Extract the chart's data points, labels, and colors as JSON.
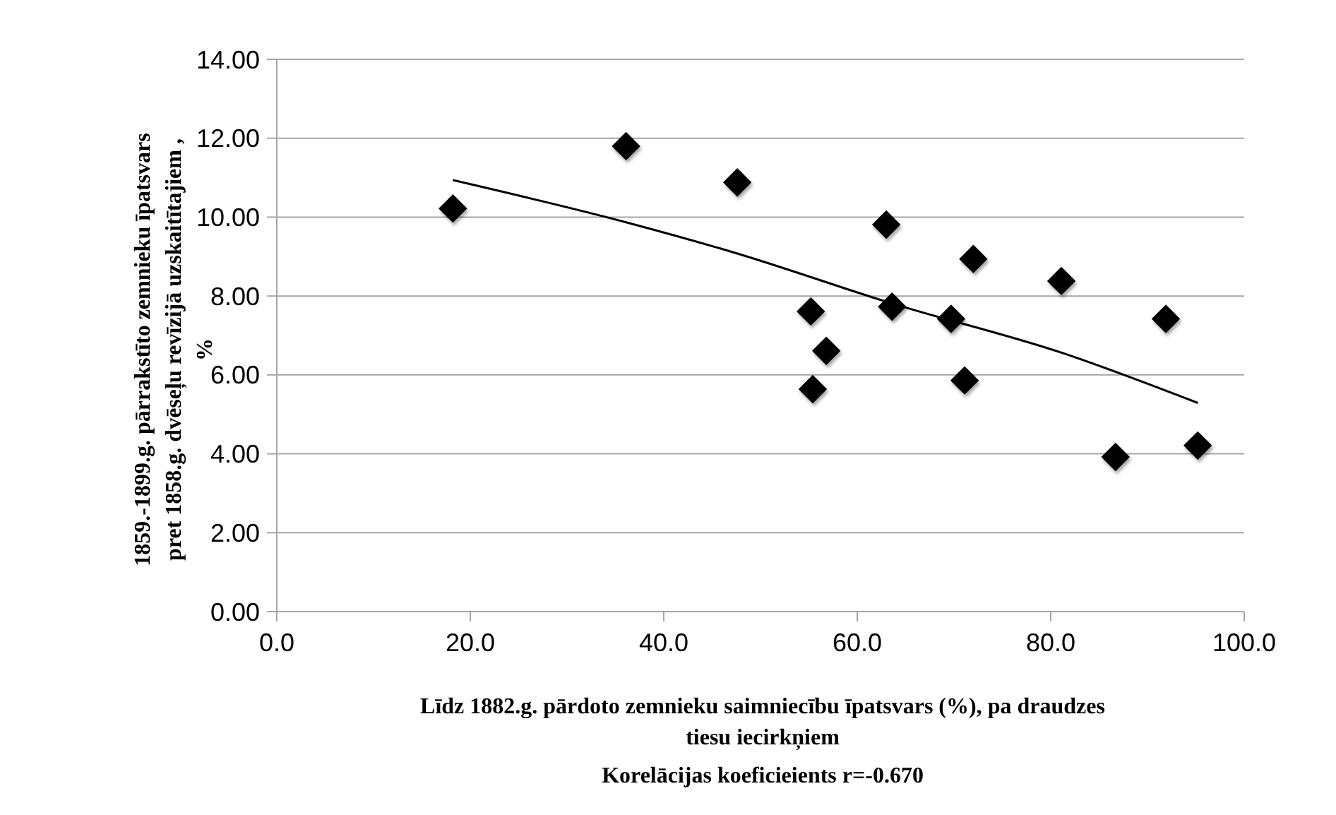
{
  "chart_data": {
    "type": "scatter",
    "xlabel": "Līdz 1882.g. pārdoto zemnieku saimniecību īpatsvars (%), pa draudzes\ntiesu iecirkņiem",
    "ylabel": "1859.-1899.g. pārrakstīto zemnieku īpatsvars\npret 1858.g. dvēseļu revīzijā uzskaitītajiem ,\n%",
    "annotations": [
      "Korelācijas koeficieients r=-0.670"
    ],
    "xlim": [
      0,
      100
    ],
    "ylim": [
      0,
      14
    ],
    "xticks": [
      {
        "value": 0,
        "label": "0.0"
      },
      {
        "value": 20,
        "label": "20.0"
      },
      {
        "value": 40,
        "label": "40.0"
      },
      {
        "value": 60,
        "label": "60.0"
      },
      {
        "value": 80,
        "label": "80.0"
      },
      {
        "value": 100,
        "label": "100.0"
      }
    ],
    "yticks": [
      {
        "value": 0,
        "label": "0.00"
      },
      {
        "value": 2,
        "label": "2.00"
      },
      {
        "value": 4,
        "label": "4.00"
      },
      {
        "value": 6,
        "label": "6.00"
      },
      {
        "value": 8,
        "label": "8.00"
      },
      {
        "value": 10,
        "label": "10.00"
      },
      {
        "value": 12,
        "label": "12.00"
      },
      {
        "value": 14,
        "label": "14.00"
      }
    ],
    "grid": "y",
    "series": [
      {
        "type": "scatter",
        "color": "#000000",
        "marker": "diamond",
        "x": [
          18.2,
          36.1,
          47.6,
          63.0,
          72.0,
          81.1,
          55.2,
          63.6,
          69.7,
          91.9,
          56.8,
          55.4,
          71.1,
          86.7,
          95.2
        ],
        "values": [
          10.22,
          11.8,
          10.88,
          9.81,
          8.94,
          8.38,
          7.61,
          7.73,
          7.42,
          7.42,
          6.61,
          5.64,
          5.86,
          3.92,
          4.21
        ]
      },
      {
        "type": "line",
        "color": "#000000",
        "marker": "none",
        "x": [
          18.2,
          36.1,
          47.3,
          63.6,
          81.4,
          95.2
        ],
        "values": [
          10.94,
          9.87,
          9.1,
          7.81,
          6.54,
          5.29
        ]
      }
    ]
  }
}
